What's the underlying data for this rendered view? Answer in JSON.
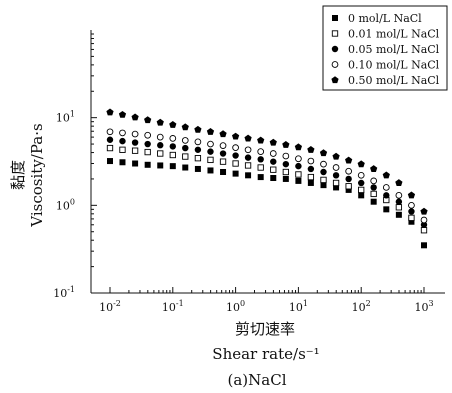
{
  "chart_data": {
    "type": "scatter",
    "title": "",
    "caption": "(a)NaCl",
    "xlabel_zh": "剪切速率",
    "xlabel": "Shear rate/s⁻¹",
    "ylabel_zh": "黏度",
    "ylabel": "Viscosity/Pa·s",
    "x_scale": "log",
    "y_scale": "log",
    "xlim": [
      0.01,
      1000
    ],
    "ylim": [
      0.1,
      100
    ],
    "x_ticks": [
      {
        "base": "10",
        "exp": "-2"
      },
      {
        "base": "10",
        "exp": "-1"
      },
      {
        "base": "10",
        "exp": "0"
      },
      {
        "base": "10",
        "exp": "1"
      },
      {
        "base": "10",
        "exp": "2"
      },
      {
        "base": "10",
        "exp": "3"
      }
    ],
    "y_ticks": [
      {
        "base": "10",
        "exp": "-1"
      },
      {
        "base": "10",
        "exp": "0"
      },
      {
        "base": "10",
        "exp": "1"
      }
    ],
    "legend_position": "top-right",
    "grid": false,
    "x": [
      0.01,
      0.0158,
      0.0251,
      0.0398,
      0.0631,
      0.1,
      0.158,
      0.251,
      0.398,
      0.631,
      1,
      1.58,
      2.51,
      3.98,
      6.31,
      10,
      15.8,
      25.1,
      39.8,
      63.1,
      100,
      158,
      251,
      398,
      631,
      1000
    ],
    "series": [
      {
        "name": "0 mol/L NaCl",
        "marker": "square-filled",
        "values": [
          3.2,
          3.1,
          3.0,
          2.9,
          2.85,
          2.8,
          2.7,
          2.6,
          2.5,
          2.4,
          2.3,
          2.2,
          2.1,
          2.05,
          2.0,
          1.9,
          1.8,
          1.7,
          1.6,
          1.5,
          1.3,
          1.1,
          0.9,
          0.78,
          0.65,
          0.35
        ]
      },
      {
        "name": "0.01 mol/L NaCl",
        "marker": "square-open",
        "values": [
          4.5,
          4.3,
          4.2,
          4.05,
          3.9,
          3.75,
          3.6,
          3.45,
          3.3,
          3.15,
          3.0,
          2.85,
          2.7,
          2.55,
          2.4,
          2.25,
          2.1,
          1.95,
          1.8,
          1.65,
          1.5,
          1.35,
          1.15,
          0.95,
          0.72,
          0.52
        ]
      },
      {
        "name": "0.05 mol/L NaCl",
        "marker": "circle-filled",
        "values": [
          5.6,
          5.4,
          5.2,
          5.0,
          4.85,
          4.7,
          4.5,
          4.3,
          4.1,
          3.9,
          3.7,
          3.5,
          3.35,
          3.15,
          2.95,
          2.8,
          2.6,
          2.4,
          2.2,
          2.0,
          1.8,
          1.6,
          1.3,
          1.1,
          0.85,
          0.6
        ]
      },
      {
        "name": "0.10 mol/L NaCl",
        "marker": "circle-open",
        "values": [
          6.9,
          6.7,
          6.5,
          6.3,
          6.0,
          5.8,
          5.5,
          5.3,
          5.0,
          4.8,
          4.55,
          4.3,
          4.1,
          3.9,
          3.65,
          3.4,
          3.2,
          2.95,
          2.7,
          2.45,
          2.2,
          1.9,
          1.6,
          1.3,
          1.0,
          0.68
        ]
      },
      {
        "name": "0.50 mol/L NaCl",
        "marker": "pentagon-filled",
        "values": [
          11.5,
          10.8,
          10.1,
          9.4,
          8.8,
          8.3,
          7.8,
          7.3,
          6.9,
          6.5,
          6.1,
          5.8,
          5.5,
          5.2,
          4.9,
          4.6,
          4.3,
          3.95,
          3.6,
          3.25,
          2.95,
          2.6,
          2.2,
          1.8,
          1.3,
          0.85
        ]
      }
    ]
  }
}
